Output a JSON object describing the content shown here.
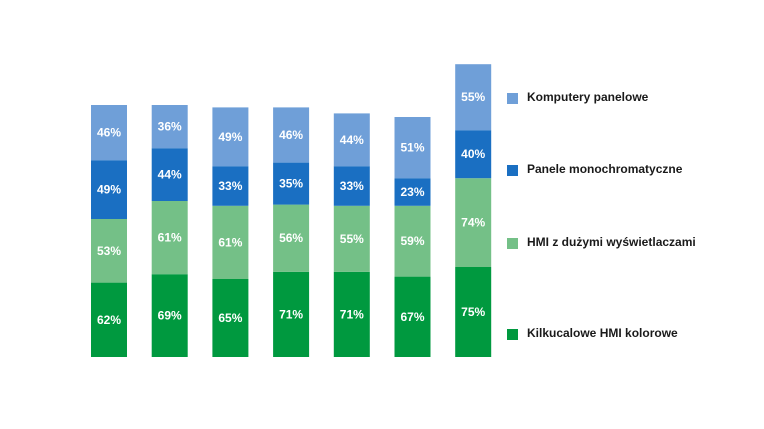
{
  "chart_data": {
    "type": "bar",
    "stacked": true,
    "categories": [
      "",
      "",
      "",
      "",
      "",
      "",
      ""
    ],
    "series": [
      {
        "name": "Kilkucalowe HMI kolorowe",
        "color": "#00993f",
        "values": [
          62,
          69,
          65,
          71,
          71,
          67,
          75
        ]
      },
      {
        "name": "HMI z dużymi wyświetlaczami",
        "color": "#74c087",
        "values": [
          53,
          61,
          61,
          56,
          55,
          59,
          74
        ]
      },
      {
        "name": "Panele monochromatyczne",
        "color": "#1a6fc2",
        "values": [
          49,
          44,
          33,
          35,
          33,
          23,
          40
        ]
      },
      {
        "name": "Komputery panelowe",
        "color": "#6f9fd8",
        "values": [
          46,
          36,
          49,
          46,
          44,
          51,
          55
        ]
      }
    ],
    "value_suffix": "%",
    "legend_position": "right",
    "title": "",
    "xlabel": "",
    "ylabel": "",
    "grid": false
  },
  "legend": {
    "items": [
      {
        "label": "Komputery panelowe",
        "color": "#6f9fd8"
      },
      {
        "label": "Panele monochromatyczne",
        "color": "#1a6fc2"
      },
      {
        "label": "HMI z dużymi wyświetlaczami",
        "color": "#74c087"
      },
      {
        "label": "Kilkucalowe HMI kolorowe",
        "color": "#00993f"
      }
    ]
  }
}
